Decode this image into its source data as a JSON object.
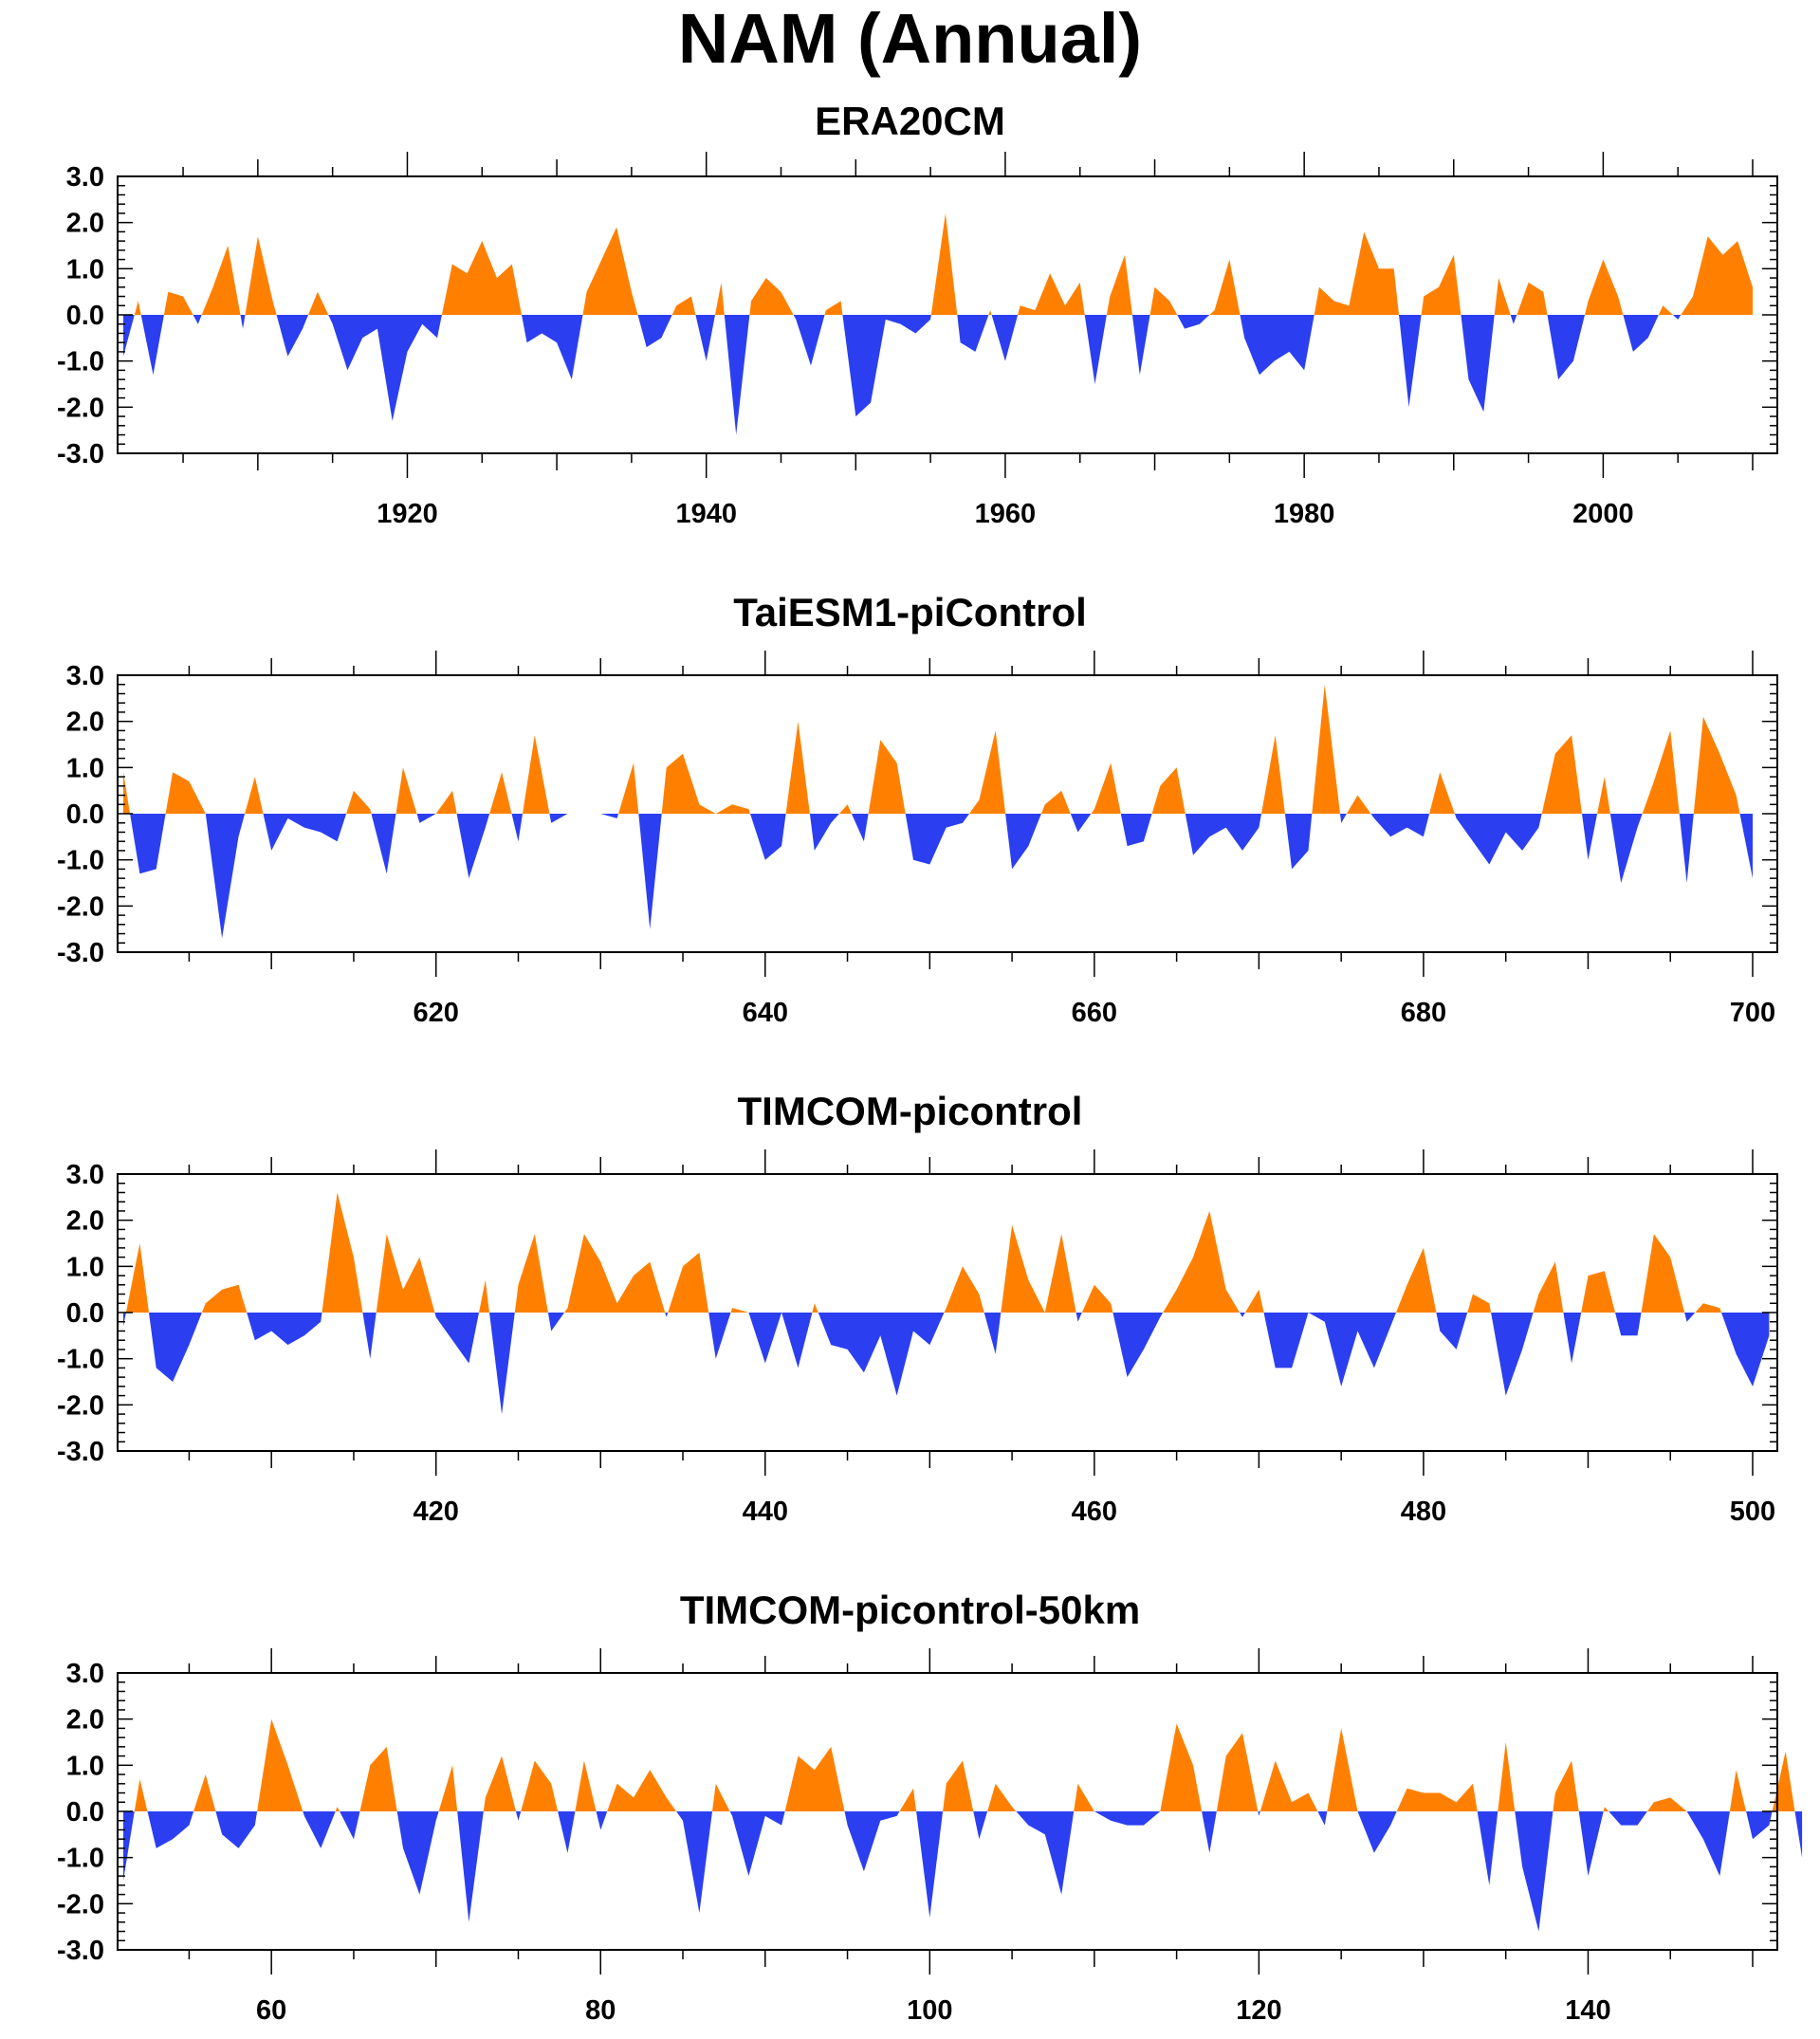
{
  "title": "NAM (Annual)",
  "colors": {
    "positive": "#ff8000",
    "negative": "#2b3ff0",
    "axis": "#000000"
  },
  "chart_data": [
    {
      "type": "area",
      "title": "ERA20CM",
      "x_start": 1901,
      "xlim": [
        1901,
        2010
      ],
      "ylim": [
        -3,
        3
      ],
      "yticks": [
        "3.0",
        "2.0",
        "1.0",
        "0.0",
        "-1.0",
        "-2.0",
        "-3.0"
      ],
      "xticks": [
        "1920",
        "1940",
        "1960",
        "1980",
        "2000"
      ],
      "values": [
        -0.9,
        0.3,
        -1.3,
        0.5,
        0.4,
        -0.2,
        0.6,
        1.5,
        -0.3,
        1.7,
        0.3,
        -0.9,
        -0.3,
        0.5,
        -0.2,
        -1.2,
        -0.5,
        -0.3,
        -2.3,
        -0.8,
        -0.2,
        -0.5,
        1.1,
        0.9,
        1.6,
        0.8,
        1.1,
        -0.6,
        -0.4,
        -0.6,
        -1.4,
        0.5,
        1.2,
        1.9,
        0.5,
        -0.7,
        -0.5,
        0.2,
        0.4,
        -1.0,
        0.7,
        -2.6,
        0.3,
        0.8,
        0.5,
        -0.1,
        -1.1,
        0.1,
        0.3,
        -2.2,
        -1.9,
        -0.1,
        -0.2,
        -0.4,
        -0.1,
        2.2,
        -0.6,
        -0.8,
        0.1,
        -1.0,
        0.2,
        0.1,
        0.9,
        0.2,
        0.7,
        -1.5,
        0.4,
        1.3,
        -1.3,
        0.6,
        0.3,
        -0.3,
        -0.2,
        0.1,
        1.2,
        -0.5,
        -1.3,
        -1.0,
        -0.8,
        -1.2,
        0.6,
        0.3,
        0.2,
        1.8,
        1.0,
        1.0,
        -2.0,
        0.4,
        0.6,
        1.3,
        -1.4,
        -2.1,
        0.8,
        -0.2,
        0.7,
        0.5,
        -1.4,
        -1.0,
        0.3,
        1.2,
        0.4,
        -0.8,
        -0.5,
        0.2,
        -0.1,
        0.4,
        1.7,
        1.3,
        1.6,
        0.6
      ]
    },
    {
      "type": "area",
      "title": "TaiESM1-piControl",
      "x_start": 601,
      "xlim": [
        601,
        700
      ],
      "ylim": [
        -3,
        3
      ],
      "yticks": [
        "3.0",
        "2.0",
        "1.0",
        "0.0",
        "-1.0",
        "-2.0",
        "-3.0"
      ],
      "xticks": [
        "620",
        "640",
        "660",
        "680",
        "700"
      ],
      "values": [
        0.9,
        -1.3,
        -1.2,
        0.9,
        0.7,
        0.0,
        -2.7,
        -0.5,
        0.8,
        -0.8,
        -0.1,
        -0.3,
        -0.4,
        -0.6,
        0.5,
        0.1,
        -1.3,
        1.0,
        -0.2,
        0.0,
        0.5,
        -1.4,
        -0.3,
        0.9,
        -0.6,
        1.7,
        -0.2,
        0.0,
        0.0,
        0.0,
        -0.1,
        1.1,
        -2.5,
        1.0,
        1.3,
        0.2,
        0.0,
        0.2,
        0.1,
        -1.0,
        -0.7,
        2.0,
        -0.8,
        -0.2,
        0.2,
        -0.6,
        1.6,
        1.1,
        -1.0,
        -1.1,
        -0.3,
        -0.2,
        0.3,
        1.8,
        -1.2,
        -0.7,
        0.2,
        0.5,
        -0.4,
        0.1,
        1.1,
        -0.7,
        -0.6,
        0.6,
        1.0,
        -0.9,
        -0.5,
        -0.3,
        -0.8,
        -0.3,
        1.7,
        -1.2,
        -0.8,
        2.8,
        -0.2,
        0.4,
        -0.1,
        -0.5,
        -0.3,
        -0.5,
        0.9,
        -0.1,
        -0.6,
        -1.1,
        -0.4,
        -0.8,
        -0.3,
        1.3,
        1.7,
        -1.0,
        0.8,
        -1.5,
        -0.3,
        0.7,
        1.8,
        -1.5,
        2.1,
        1.3,
        0.4,
        -1.4
      ]
    },
    {
      "type": "area",
      "title": "TIMCOM-picontrol",
      "x_start": 401,
      "xlim": [
        401,
        500
      ],
      "ylim": [
        -3,
        3
      ],
      "yticks": [
        "3.0",
        "2.0",
        "1.0",
        "0.0",
        "-1.0",
        "-2.0",
        "-3.0"
      ],
      "xticks": [
        "420",
        "440",
        "460",
        "480",
        "500"
      ],
      "values": [
        -0.3,
        1.5,
        -1.2,
        -1.5,
        -0.7,
        0.2,
        0.5,
        0.6,
        -0.6,
        -0.4,
        -0.7,
        -0.5,
        -0.2,
        2.6,
        1.2,
        -1.0,
        1.7,
        0.5,
        1.2,
        -0.1,
        -0.6,
        -1.1,
        0.7,
        -2.2,
        0.6,
        1.7,
        -0.4,
        0.1,
        1.7,
        1.1,
        0.2,
        0.8,
        1.1,
        -0.1,
        1.0,
        1.3,
        -1.0,
        0.1,
        0.0,
        -1.1,
        0.0,
        -1.2,
        0.2,
        -0.7,
        -0.8,
        -1.3,
        -0.5,
        -1.8,
        -0.4,
        -0.7,
        0.1,
        1.0,
        0.4,
        -0.9,
        1.9,
        0.7,
        0.0,
        1.7,
        -0.2,
        0.6,
        0.2,
        -1.4,
        -0.8,
        -0.1,
        0.5,
        1.2,
        2.2,
        0.5,
        -0.1,
        0.5,
        -1.2,
        -1.2,
        0.0,
        -0.2,
        -1.6,
        -0.4,
        -1.2,
        -0.3,
        0.6,
        1.4,
        -0.4,
        -0.8,
        0.4,
        0.2,
        -1.8,
        -0.8,
        0.4,
        1.1,
        -1.1,
        0.8,
        0.9,
        -0.5,
        -0.5,
        1.7,
        1.2,
        -0.2,
        0.2,
        0.1,
        -0.9,
        -1.6,
        -0.5
      ]
    },
    {
      "type": "area",
      "title": "TIMCOM-picontrol-50km",
      "x_start": 51,
      "xlim": [
        51,
        150
      ],
      "ylim": [
        -3,
        3
      ],
      "yticks": [
        "3.0",
        "2.0",
        "1.0",
        "0.0",
        "-1.0",
        "-2.0",
        "-3.0"
      ],
      "xticks": [
        "60",
        "80",
        "100",
        "120",
        "140"
      ],
      "values": [
        -1.5,
        0.7,
        -0.8,
        -0.6,
        -0.3,
        0.8,
        -0.5,
        -0.8,
        -0.3,
        2.0,
        1.0,
        -0.1,
        -0.8,
        0.1,
        -0.6,
        1.0,
        1.4,
        -0.8,
        -1.8,
        -0.2,
        1.0,
        -2.4,
        0.3,
        1.2,
        -0.2,
        1.1,
        0.6,
        -0.9,
        1.1,
        -0.4,
        0.6,
        0.3,
        0.9,
        0.3,
        -0.2,
        -2.2,
        0.6,
        -0.1,
        -1.4,
        -0.1,
        -0.3,
        1.2,
        0.9,
        1.4,
        -0.3,
        -1.3,
        -0.2,
        -0.1,
        0.5,
        -2.3,
        0.6,
        1.1,
        -0.6,
        0.6,
        0.1,
        -0.3,
        -0.5,
        -1.8,
        0.6,
        0.0,
        -0.2,
        -0.3,
        -0.3,
        0.0,
        1.9,
        1.0,
        -0.9,
        1.2,
        1.7,
        -0.1,
        1.1,
        0.2,
        0.4,
        -0.3,
        1.8,
        0.0,
        -0.9,
        -0.3,
        0.5,
        0.4,
        0.4,
        0.2,
        0.6,
        -1.6,
        1.5,
        -1.2,
        -2.6,
        0.4,
        1.1,
        -1.4,
        0.1,
        -0.3,
        -0.3,
        0.2,
        0.3,
        0.0,
        -0.6,
        -1.4,
        0.9,
        -0.6,
        -0.3,
        1.3,
        -1.0
      ]
    }
  ]
}
